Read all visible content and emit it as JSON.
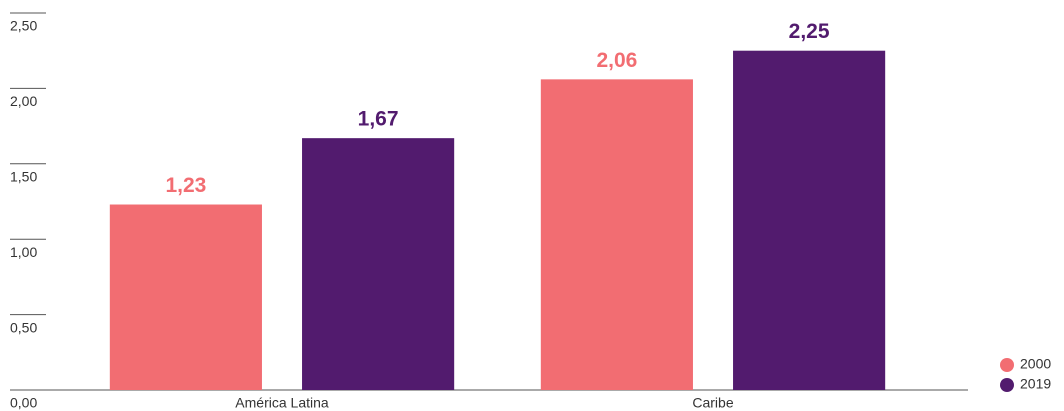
{
  "chart_data": {
    "type": "bar",
    "categories": [
      "América Latina",
      "Caribe"
    ],
    "series": [
      {
        "name": "2000",
        "color": "#f26d72",
        "values": [
          1.23,
          2.06
        ],
        "value_labels": [
          "1,23",
          "2,06"
        ]
      },
      {
        "name": "2019",
        "color": "#521b6e",
        "values": [
          1.67,
          2.25
        ],
        "value_labels": [
          "1,67",
          "2,25"
        ]
      }
    ],
    "ylim": [
      0,
      2.5
    ],
    "yticks": [
      {
        "value": 0,
        "label": "0,00"
      },
      {
        "value": 0.5,
        "label": "0,50"
      },
      {
        "value": 1,
        "label": "1,00"
      },
      {
        "value": 1.5,
        "label": "1,50"
      },
      {
        "value": 2,
        "label": "2,00"
      },
      {
        "value": 2.5,
        "label": "2,50"
      }
    ],
    "legend": "lower right"
  }
}
